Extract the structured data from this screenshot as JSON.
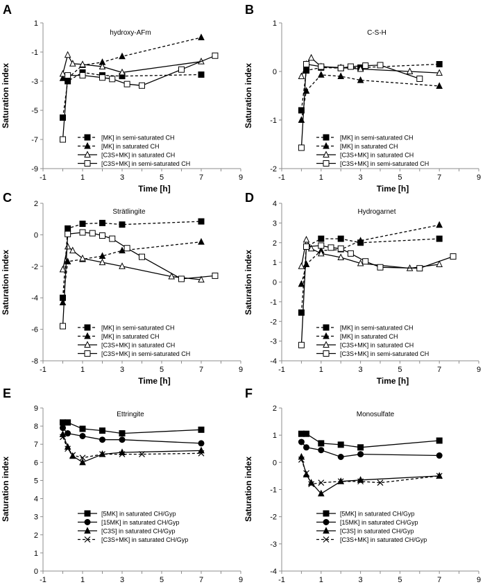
{
  "chart_data": [
    {
      "panel": "A",
      "type": "line",
      "title": "hydroxy-AFm",
      "xlabel": "Time [h]",
      "ylabel": "Saturation index",
      "xlim": [
        -1,
        9
      ],
      "ylim": [
        -9,
        1
      ],
      "xticks": [
        "-1",
        "1",
        "3",
        "5",
        "7",
        "9"
      ],
      "yticks": [
        "-9",
        "-7",
        "-5",
        "-3",
        "-1",
        "1"
      ],
      "legend_position": "bottom-center",
      "series": [
        {
          "name": "[MK] in semi-saturated CH",
          "marker": "square-filled",
          "dash": true,
          "x": [
            0,
            0.25,
            1,
            2,
            3,
            7
          ],
          "y": [
            -5.5,
            -3.0,
            -2.4,
            -2.6,
            -2.65,
            -2.55
          ]
        },
        {
          "name": "[MK] in saturated CH",
          "marker": "triangle-filled",
          "dash": true,
          "x": [
            0,
            0.25,
            1,
            2,
            3,
            7
          ],
          "y": [
            -2.8,
            -2.8,
            -1.9,
            -1.7,
            -1.3,
            0.0
          ]
        },
        {
          "name": "[C3S+MK] in saturated CH",
          "marker": "triangle-open",
          "dash": false,
          "x": [
            0,
            0.25,
            0.5,
            1,
            2,
            3,
            7
          ],
          "y": [
            -2.5,
            -1.2,
            -1.8,
            -1.85,
            -2.0,
            -2.4,
            -1.65
          ]
        },
        {
          "name": "[C3S+MK] in semi-saturated CH",
          "marker": "square-open",
          "dash": false,
          "x": [
            0,
            0.25,
            1,
            2,
            2.5,
            3.25,
            4,
            6,
            7.7
          ],
          "y": [
            -7.0,
            -2.6,
            -2.6,
            -2.75,
            -2.85,
            -3.2,
            -3.3,
            -2.2,
            -1.25
          ]
        }
      ]
    },
    {
      "panel": "B",
      "type": "line",
      "title": "C-S-H",
      "xlabel": "Time [h]",
      "ylabel": "Saturation index",
      "xlim": [
        -1,
        9
      ],
      "ylim": [
        -2,
        1
      ],
      "xticks": [
        "-1",
        "1",
        "3",
        "5",
        "7",
        "9"
      ],
      "yticks": [
        "-2",
        "-1",
        "0",
        "1"
      ],
      "legend_position": "bottom-center",
      "series": [
        {
          "name": "[MK] in semi-saturated CH",
          "marker": "square-filled",
          "dash": true,
          "x": [
            0,
            0.25,
            1,
            2,
            3,
            7
          ],
          "y": [
            -0.8,
            0.02,
            0.08,
            0.07,
            0.08,
            0.15
          ]
        },
        {
          "name": "[MK] in saturated CH",
          "marker": "triangle-filled",
          "dash": true,
          "x": [
            0,
            0.25,
            1,
            2,
            3,
            7
          ],
          "y": [
            -1.0,
            -0.4,
            -0.07,
            -0.1,
            -0.18,
            -0.3
          ]
        },
        {
          "name": "[C3S+MK] in saturated CH",
          "marker": "triangle-open",
          "dash": false,
          "x": [
            0,
            0.25,
            0.5,
            1,
            2,
            3,
            5.5,
            7
          ],
          "y": [
            -0.1,
            0.15,
            0.28,
            0.1,
            0.08,
            0.05,
            0.0,
            -0.03
          ]
        },
        {
          "name": "[C3S+MK] in semi-saturated CH",
          "marker": "square-open",
          "dash": false,
          "x": [
            0,
            0.25,
            1,
            2,
            2.5,
            3.25,
            4,
            6
          ],
          "y": [
            -1.57,
            0.15,
            0.1,
            0.07,
            0.1,
            0.12,
            0.13,
            -0.15
          ]
        }
      ]
    },
    {
      "panel": "C",
      "type": "line",
      "title": "Strätlingite",
      "xlabel": "Time [h]",
      "ylabel": "Saturation index",
      "xlim": [
        -1,
        9
      ],
      "ylim": [
        -8,
        2
      ],
      "xticks": [
        "-1",
        "1",
        "3",
        "5",
        "7",
        "9"
      ],
      "yticks": [
        "-8",
        "-6",
        "-4",
        "-2",
        "0",
        "2"
      ],
      "legend_position": "bottom-center",
      "series": [
        {
          "name": "[MK] in semi-saturated CH",
          "marker": "square-filled",
          "dash": true,
          "x": [
            0,
            0.25,
            1,
            2,
            3,
            7
          ],
          "y": [
            -4.0,
            0.4,
            0.7,
            0.75,
            0.65,
            0.85
          ]
        },
        {
          "name": "[MK] in saturated CH",
          "marker": "triangle-filled",
          "dash": true,
          "x": [
            0,
            0.25,
            1,
            2,
            3,
            7
          ],
          "y": [
            -4.3,
            -1.7,
            -1.55,
            -1.35,
            -1.0,
            -0.45
          ]
        },
        {
          "name": "[C3S+MK] in saturated CH",
          "marker": "triangle-open",
          "dash": false,
          "x": [
            0,
            0.25,
            0.5,
            1,
            2,
            3,
            5.5,
            7
          ],
          "y": [
            -2.2,
            -0.75,
            -1.0,
            -1.5,
            -1.75,
            -2.0,
            -2.65,
            -2.85
          ]
        },
        {
          "name": "[C3S+MK] in semi-saturated CH",
          "marker": "square-open",
          "dash": false,
          "x": [
            0,
            0.25,
            1,
            1.5,
            2,
            2.5,
            3.25,
            4,
            6,
            7.7
          ],
          "y": [
            -5.8,
            0.05,
            0.15,
            0.1,
            -0.05,
            -0.25,
            -0.85,
            -1.4,
            -2.8,
            -2.6
          ]
        }
      ]
    },
    {
      "panel": "D",
      "type": "line",
      "title": "Hydrogarnet",
      "xlabel": "Time [h]",
      "ylabel": "Saturation index",
      "xlim": [
        -1,
        9
      ],
      "ylim": [
        -4,
        4
      ],
      "xticks": [
        "-1",
        "1",
        "3",
        "5",
        "7",
        "9"
      ],
      "yticks": [
        "-4",
        "-3",
        "-2",
        "-1",
        "0",
        "1",
        "2",
        "3",
        "4"
      ],
      "legend_position": "bottom-center",
      "series": [
        {
          "name": "[MK] in semi-saturated CH",
          "marker": "square-filled",
          "dash": true,
          "x": [
            0,
            0.25,
            1,
            2,
            3,
            7
          ],
          "y": [
            -1.55,
            1.8,
            2.2,
            2.2,
            2.0,
            2.2
          ]
        },
        {
          "name": "[MK] in saturated CH",
          "marker": "triangle-filled",
          "dash": true,
          "x": [
            0,
            0.25,
            1,
            2,
            3,
            7
          ],
          "y": [
            -0.1,
            0.9,
            1.6,
            1.65,
            2.1,
            2.9
          ]
        },
        {
          "name": "[C3S+MK] in saturated CH",
          "marker": "triangle-open",
          "dash": false,
          "x": [
            0,
            0.25,
            0.5,
            1,
            2,
            3,
            5.5,
            7
          ],
          "y": [
            0.8,
            2.15,
            1.7,
            1.45,
            1.25,
            0.95,
            0.7,
            0.9
          ]
        },
        {
          "name": "[C3S+MK] in semi-saturated CH",
          "marker": "square-open",
          "dash": false,
          "x": [
            0,
            0.25,
            1,
            1.5,
            2,
            2.5,
            3.25,
            4,
            6,
            7.7
          ],
          "y": [
            -3.2,
            1.8,
            1.85,
            1.75,
            1.7,
            1.45,
            1.05,
            0.75,
            0.7,
            1.3
          ]
        }
      ]
    },
    {
      "panel": "E",
      "type": "line",
      "title": "Ettringite",
      "xlabel": "Time [h]",
      "ylabel": "Saturation index",
      "xlim": [
        -1,
        9
      ],
      "ylim": [
        0,
        9
      ],
      "xticks": [
        "-1",
        "1",
        "3",
        "5",
        "7",
        "9"
      ],
      "yticks": [
        "0",
        "1",
        "2",
        "3",
        "4",
        "5",
        "6",
        "7",
        "8",
        "9"
      ],
      "legend_position": "bottom-center",
      "series": [
        {
          "name": "[5MK] in saturated CH/Gyp",
          "marker": "square-filled",
          "dash": false,
          "x": [
            0,
            0.25,
            1,
            2,
            3,
            7
          ],
          "y": [
            8.2,
            8.2,
            7.85,
            7.75,
            7.6,
            7.8
          ]
        },
        {
          "name": "[15MK] in saturated CH/Gyp",
          "marker": "circle-filled",
          "dash": false,
          "x": [
            0,
            0.25,
            1,
            2,
            3,
            7
          ],
          "y": [
            7.9,
            7.6,
            7.45,
            7.25,
            7.25,
            7.05
          ]
        },
        {
          "name": "[C3S] in saturated CH/Gyp",
          "marker": "triangle-filled",
          "dash": false,
          "x": [
            0,
            0.25,
            0.5,
            1,
            2,
            3,
            7
          ],
          "y": [
            7.55,
            6.85,
            6.35,
            6.0,
            6.45,
            6.55,
            6.65
          ]
        },
        {
          "name": "[C3S+MK] in saturated CH/Gyp",
          "marker": "x",
          "dash": true,
          "x": [
            0,
            0.25,
            0.5,
            1,
            2,
            3,
            4,
            7
          ],
          "y": [
            7.4,
            6.75,
            6.4,
            6.25,
            6.45,
            6.45,
            6.45,
            6.5
          ]
        }
      ]
    },
    {
      "panel": "F",
      "type": "line",
      "title": "Monosulfate",
      "xlabel": "Time [h]",
      "ylabel": "Saturation index",
      "xlim": [
        -1,
        9
      ],
      "ylim": [
        -4,
        2
      ],
      "xticks": [
        "-1",
        "1",
        "3",
        "5",
        "7",
        "9"
      ],
      "yticks": [
        "-4",
        "-3",
        "-2",
        "-1",
        "0",
        "1",
        "2"
      ],
      "legend_position": "bottom-center",
      "series": [
        {
          "name": "[5MK] in saturated CH/Gyp",
          "marker": "square-filled",
          "dash": false,
          "x": [
            0,
            0.25,
            1,
            2,
            3,
            7
          ],
          "y": [
            1.05,
            1.05,
            0.7,
            0.65,
            0.55,
            0.8
          ]
        },
        {
          "name": "[15MK] in saturated CH/Gyp",
          "marker": "circle-filled",
          "dash": false,
          "x": [
            0,
            0.25,
            1,
            2,
            3,
            7
          ],
          "y": [
            0.75,
            0.55,
            0.45,
            0.2,
            0.3,
            0.25
          ]
        },
        {
          "name": "[C3S] in saturated CH/Gyp",
          "marker": "triangle-filled",
          "dash": false,
          "x": [
            0,
            0.25,
            0.5,
            1,
            2,
            3,
            7
          ],
          "y": [
            0.2,
            -0.45,
            -0.75,
            -1.15,
            -0.7,
            -0.65,
            -0.5
          ]
        },
        {
          "name": "[C3S+MK] in saturated CH/Gyp",
          "marker": "x",
          "dash": true,
          "x": [
            0,
            0.25,
            0.5,
            1,
            2,
            3,
            4,
            7
          ],
          "y": [
            0.1,
            -0.4,
            -0.8,
            -0.75,
            -0.7,
            -0.7,
            -0.75,
            -0.5
          ]
        }
      ]
    }
  ]
}
